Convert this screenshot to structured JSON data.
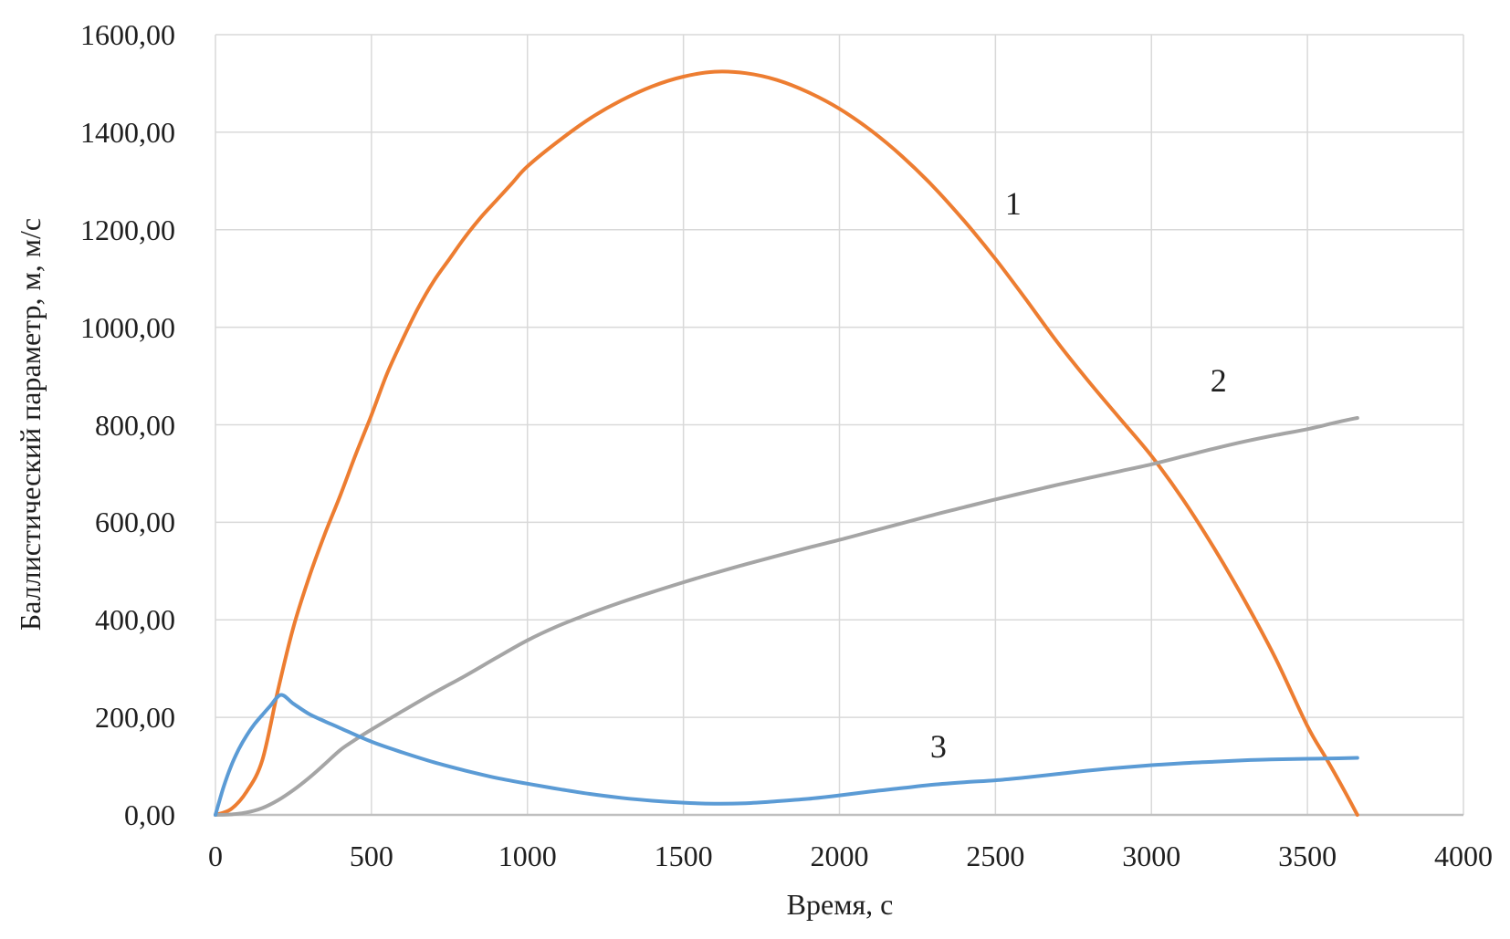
{
  "chart_data": {
    "type": "line",
    "title": "",
    "xlabel": "Время, с",
    "ylabel": "Баллистический параметр, м, м/с",
    "xlim": [
      0,
      4000
    ],
    "ylim": [
      0,
      1600
    ],
    "x_ticks": [
      0,
      500,
      1000,
      1500,
      2000,
      2500,
      3000,
      3500,
      4000
    ],
    "x_tick_labels": [
      "0",
      "500",
      "1000",
      "1500",
      "2000",
      "2500",
      "3000",
      "3500",
      "4000"
    ],
    "y_ticks": [
      0,
      200,
      400,
      600,
      800,
      1000,
      1200,
      1400,
      1600
    ],
    "y_tick_labels": [
      "0,00",
      "200,00",
      "400,00",
      "600,00",
      "800,00",
      "1000,00",
      "1200,00",
      "1400,00",
      "1600,00"
    ],
    "grid": true,
    "legend_position": "none",
    "colors": {
      "background": "#FFFFFF",
      "grid": "#D9D9D9",
      "axis": "#BFBFBF",
      "text": "#1F1F1F",
      "series1": "#ED7D31",
      "series2": "#A5A5A5",
      "series3": "#5B9BD5"
    },
    "series": [
      {
        "label": "1",
        "color": "#ED7D31",
        "label_xy": [
          2557,
          1254
        ],
        "points": [
          [
            0,
            0
          ],
          [
            50,
            12
          ],
          [
            100,
            48
          ],
          [
            150,
            112
          ],
          [
            200,
            255
          ],
          [
            250,
            385
          ],
          [
            300,
            487
          ],
          [
            350,
            575
          ],
          [
            400,
            655
          ],
          [
            450,
            740
          ],
          [
            500,
            820
          ],
          [
            550,
            905
          ],
          [
            600,
            975
          ],
          [
            650,
            1040
          ],
          [
            700,
            1095
          ],
          [
            750,
            1140
          ],
          [
            800,
            1185
          ],
          [
            850,
            1225
          ],
          [
            900,
            1260
          ],
          [
            950,
            1295
          ],
          [
            1000,
            1330
          ],
          [
            1100,
            1382
          ],
          [
            1200,
            1428
          ],
          [
            1300,
            1465
          ],
          [
            1400,
            1494
          ],
          [
            1500,
            1514
          ],
          [
            1600,
            1524
          ],
          [
            1700,
            1521
          ],
          [
            1800,
            1507
          ],
          [
            1900,
            1482
          ],
          [
            2000,
            1448
          ],
          [
            2100,
            1404
          ],
          [
            2200,
            1351
          ],
          [
            2300,
            1289
          ],
          [
            2400,
            1218
          ],
          [
            2500,
            1140
          ],
          [
            2600,
            1055
          ],
          [
            2700,
            968
          ],
          [
            2800,
            888
          ],
          [
            2900,
            812
          ],
          [
            3000,
            736
          ],
          [
            3100,
            648
          ],
          [
            3200,
            548
          ],
          [
            3300,
            438
          ],
          [
            3400,
            318
          ],
          [
            3500,
            182
          ],
          [
            3560,
            116
          ],
          [
            3620,
            48
          ],
          [
            3660,
            0
          ]
        ]
      },
      {
        "label": "2",
        "color": "#A5A5A5",
        "label_xy": [
          3215,
          891
        ],
        "points": [
          [
            0,
            0
          ],
          [
            50,
            1
          ],
          [
            100,
            5
          ],
          [
            150,
            14
          ],
          [
            200,
            30
          ],
          [
            250,
            51
          ],
          [
            300,
            76
          ],
          [
            350,
            104
          ],
          [
            400,
            133
          ],
          [
            450,
            155
          ],
          [
            500,
            175
          ],
          [
            600,
            213
          ],
          [
            700,
            250
          ],
          [
            800,
            285
          ],
          [
            900,
            322
          ],
          [
            1000,
            358
          ],
          [
            1100,
            388
          ],
          [
            1200,
            413
          ],
          [
            1300,
            436
          ],
          [
            1400,
            457
          ],
          [
            1500,
            477
          ],
          [
            1600,
            496
          ],
          [
            1700,
            514
          ],
          [
            1800,
            531
          ],
          [
            1900,
            548
          ],
          [
            2000,
            564
          ],
          [
            2100,
            581
          ],
          [
            2200,
            598
          ],
          [
            2300,
            615
          ],
          [
            2400,
            631
          ],
          [
            2500,
            647
          ],
          [
            2600,
            662
          ],
          [
            2700,
            677
          ],
          [
            2800,
            691
          ],
          [
            2900,
            705
          ],
          [
            3000,
            719
          ],
          [
            3100,
            735
          ],
          [
            3200,
            751
          ],
          [
            3300,
            766
          ],
          [
            3400,
            779
          ],
          [
            3500,
            791
          ],
          [
            3600,
            806
          ],
          [
            3660,
            814
          ]
        ]
      },
      {
        "label": "3",
        "color": "#5B9BD5",
        "label_xy": [
          2317,
          140
        ],
        "points": [
          [
            0,
            0
          ],
          [
            25,
            55
          ],
          [
            50,
            100
          ],
          [
            75,
            135
          ],
          [
            100,
            163
          ],
          [
            125,
            186
          ],
          [
            150,
            205
          ],
          [
            175,
            223
          ],
          [
            210,
            246
          ],
          [
            250,
            228
          ],
          [
            300,
            207
          ],
          [
            350,
            192
          ],
          [
            400,
            178
          ],
          [
            500,
            150
          ],
          [
            600,
            128
          ],
          [
            700,
            108
          ],
          [
            800,
            91
          ],
          [
            900,
            76
          ],
          [
            1000,
            64
          ],
          [
            1100,
            53
          ],
          [
            1200,
            43
          ],
          [
            1300,
            35
          ],
          [
            1400,
            29
          ],
          [
            1500,
            25
          ],
          [
            1600,
            23
          ],
          [
            1700,
            24
          ],
          [
            1800,
            28
          ],
          [
            1900,
            33
          ],
          [
            2000,
            40
          ],
          [
            2100,
            48
          ],
          [
            2200,
            55
          ],
          [
            2300,
            62
          ],
          [
            2400,
            67
          ],
          [
            2500,
            71
          ],
          [
            2600,
            77
          ],
          [
            2700,
            84
          ],
          [
            2800,
            91
          ],
          [
            2900,
            97
          ],
          [
            3000,
            102
          ],
          [
            3100,
            106
          ],
          [
            3200,
            109
          ],
          [
            3300,
            112
          ],
          [
            3400,
            114
          ],
          [
            3500,
            115
          ],
          [
            3600,
            116
          ],
          [
            3660,
            117
          ]
        ]
      }
    ]
  }
}
